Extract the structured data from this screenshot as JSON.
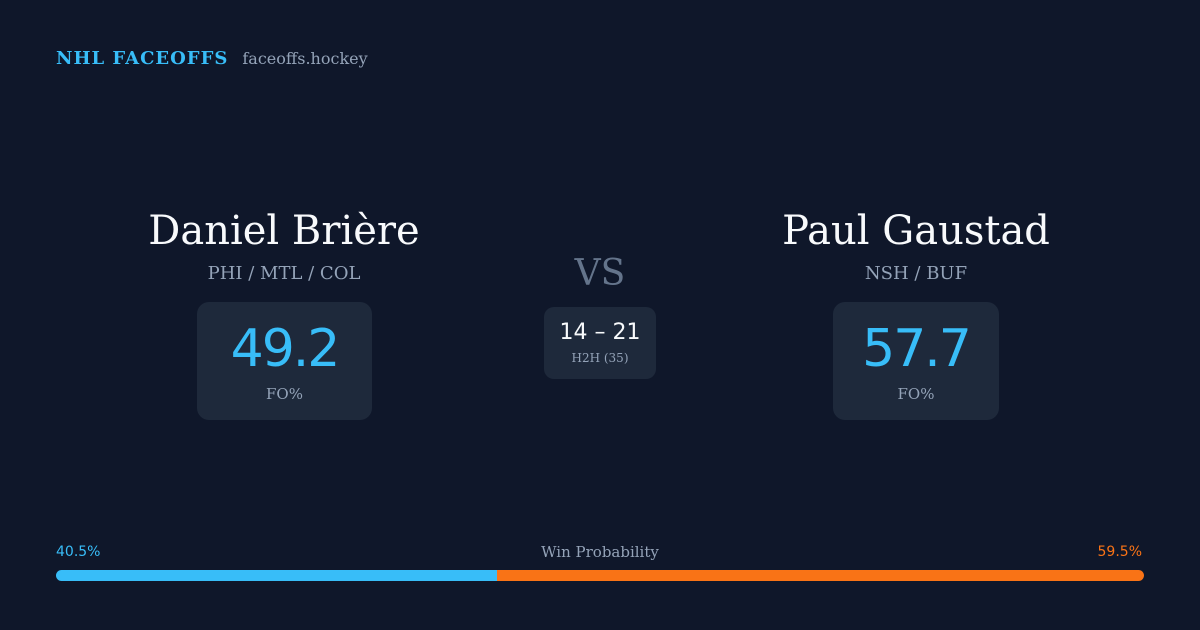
{
  "brand": {
    "name": "NHL FACEOFFS",
    "url": "faceoffs.hockey"
  },
  "players": {
    "left": {
      "name": "Daniel Brière",
      "teams": "PHI / MTL / COL",
      "fo_value": "49.2",
      "fo_label": "FO%"
    },
    "right": {
      "name": "Paul Gaustad",
      "teams": "NSH / BUF",
      "fo_value": "57.7",
      "fo_label": "FO%"
    }
  },
  "vs": "VS",
  "h2h": {
    "score": "14 – 21",
    "label": "H2H (35)"
  },
  "win_probability": {
    "title": "Win Probability",
    "left_label": "40.5%",
    "right_label": "59.5%",
    "left_fraction": 0.405,
    "right_fraction": 0.595
  },
  "colors": {
    "background": "#0f172a",
    "card": "#1e293b",
    "accent_left": "#38bdf8",
    "accent_right": "#f97316",
    "muted": "#94a3b8"
  }
}
